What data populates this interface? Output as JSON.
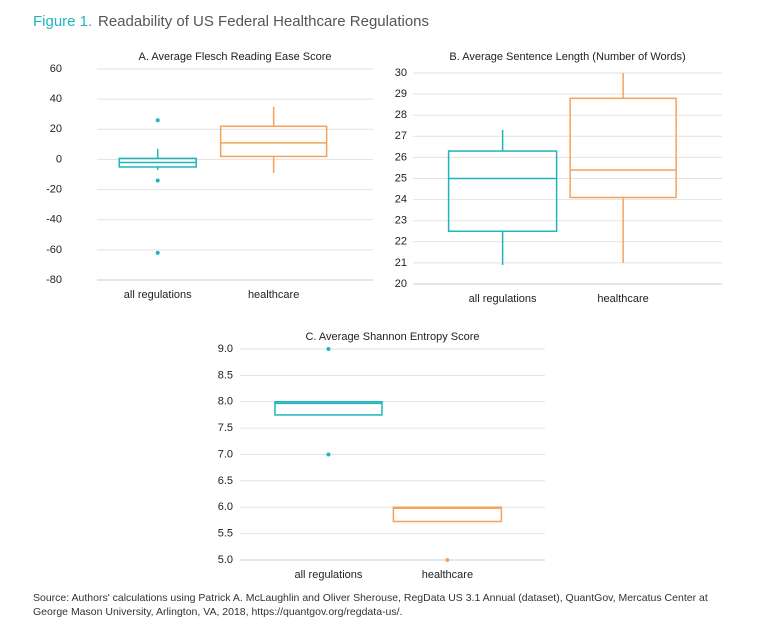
{
  "figure_label": "Figure 1.",
  "title": "Readability of US Federal Healthcare Regulations",
  "source": "Source: Authors' calculations using Patrick A. McLaughlin and Oliver Sherouse, RegData US 3.1 Annual (dataset), QuantGov, Mercatus Center at George Mason University, Arlington, VA, 2018, https://quantgov.org/regdata-us/.",
  "chart_data": [
    {
      "type": "box",
      "title": "A. Average Flesch Reading Ease Score",
      "categories": [
        "all regulations",
        "healthcare"
      ],
      "ylim": [
        -80,
        60
      ],
      "yticks": [
        -80,
        -60,
        -40,
        -20,
        0,
        20,
        40,
        60
      ],
      "grid": true,
      "boxes": [
        {
          "color": "#1fb5bd",
          "whisker_low": -7,
          "q1": -5,
          "median": -2,
          "q3": 0.7,
          "whisker_high": 7,
          "outliers": [
            26,
            -14,
            -62
          ]
        },
        {
          "color": "#f5a25d",
          "whisker_low": -9,
          "q1": 2,
          "median": 11,
          "q3": 22,
          "whisker_high": 35,
          "outliers": []
        }
      ]
    },
    {
      "type": "box",
      "title": "B. Average Sentence Length (Number of Words)",
      "categories": [
        "all regulations",
        "healthcare"
      ],
      "ylim": [
        20,
        30
      ],
      "yticks": [
        20,
        21,
        22,
        23,
        24,
        25,
        26,
        27,
        28,
        29,
        30
      ],
      "grid": true,
      "boxes": [
        {
          "color": "#1fb5bd",
          "whisker_low": 20.9,
          "q1": 22.5,
          "median": 25,
          "q3": 26.3,
          "whisker_high": 27.3,
          "outliers": []
        },
        {
          "color": "#f5a25d",
          "whisker_low": 21,
          "q1": 24.1,
          "median": 25.4,
          "q3": 28.8,
          "whisker_high": 30,
          "outliers": []
        }
      ]
    },
    {
      "type": "box",
      "title": "C. Average Shannon Entropy Score",
      "categories": [
        "all regulations",
        "healthcare"
      ],
      "ylim": [
        5,
        9
      ],
      "yticks": [
        {
          "value": 5,
          "label": "5.0"
        },
        5.5,
        {
          "value": 6,
          "label": "6.0"
        },
        6.5,
        {
          "value": 7,
          "label": "7.0"
        },
        7.5,
        {
          "value": 8,
          "label": "8.0"
        },
        8.5,
        {
          "value": 9,
          "label": "9.0"
        }
      ],
      "grid": true,
      "boxes": [
        {
          "color": "#1fb5bd",
          "whisker_low": null,
          "q1": 7.75,
          "median": 7.97,
          "q3": 8,
          "whisker_high": null,
          "outliers": [
            9,
            7
          ]
        },
        {
          "color": "#f5a25d",
          "whisker_low": null,
          "q1": 5.73,
          "median": 5.98,
          "q3": 6,
          "whisker_high": null,
          "outliers": [
            5
          ]
        }
      ]
    }
  ]
}
